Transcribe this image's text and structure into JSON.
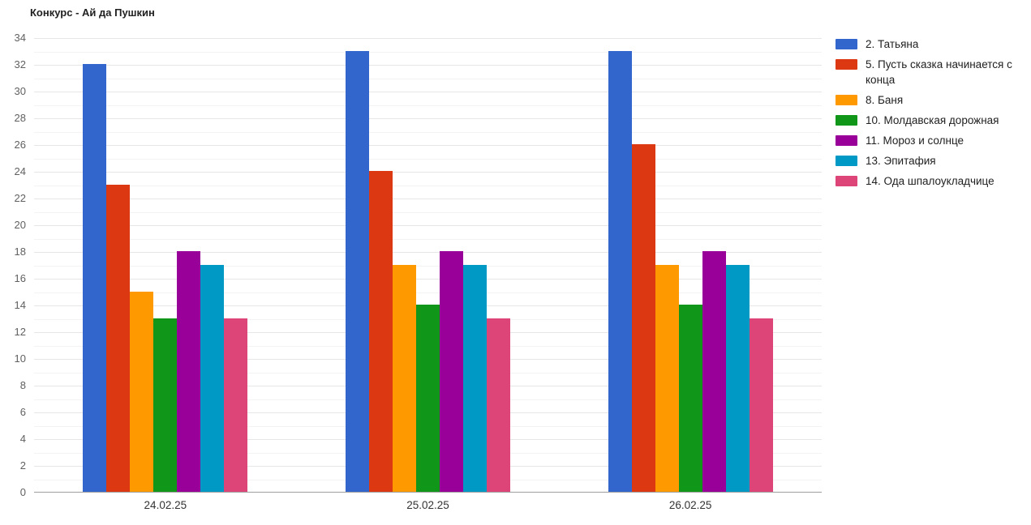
{
  "title": "Конкурс - Ай да Пушкин",
  "chart_data": {
    "type": "bar",
    "title": "Конкурс - Ай да Пушкин",
    "categories": [
      "24.02.25",
      "25.02.25",
      "26.02.25"
    ],
    "series": [
      {
        "name": "2. Татьяна",
        "color": "#3366CC",
        "values": [
          32,
          33,
          33
        ]
      },
      {
        "name": "5. Пусть сказка начинается с конца",
        "color": "#DC3912",
        "values": [
          23,
          24,
          26
        ]
      },
      {
        "name": "8. Баня",
        "color": "#FF9900",
        "values": [
          15,
          17,
          17
        ]
      },
      {
        "name": "10. Молдавская дорожная",
        "color": "#109618",
        "values": [
          13,
          14,
          14
        ]
      },
      {
        "name": "11. Мороз и солнце",
        "color": "#990099",
        "values": [
          18,
          18,
          18
        ]
      },
      {
        "name": "13. Эпитафия",
        "color": "#0099C6",
        "values": [
          17,
          17,
          17
        ]
      },
      {
        "name": "14. Ода шпалоукладчице",
        "color": "#DD4477",
        "values": [
          13,
          13,
          13
        ]
      }
    ],
    "xlabel": "",
    "ylabel": "",
    "ylim": [
      0,
      34
    ],
    "y_major_step": 2,
    "y_minor_step": 1,
    "grid": true,
    "legend_position": "right",
    "colors": {
      "major_gridline": "#e6e6e6",
      "minor_gridline": "#f3f3f3",
      "axis_baseline": "#9e9e9e",
      "y_tick_text": "#616161",
      "x_tick_text": "#333333",
      "title_text": "#212121",
      "background": "#ffffff"
    }
  }
}
